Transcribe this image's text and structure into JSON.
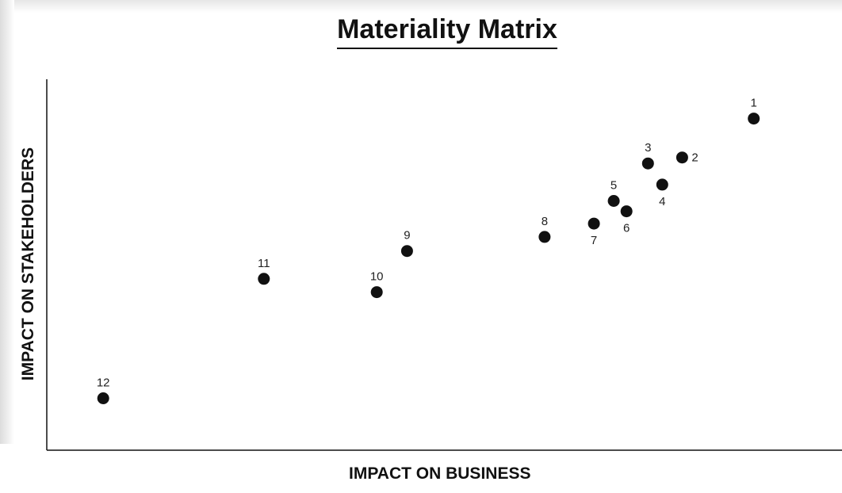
{
  "chart_data": {
    "type": "scatter",
    "title": "Materiality Matrix",
    "xlabel": "IMPACT ON BUSINESS",
    "ylabel": "IMPACT ON STAKEHOLDERS",
    "xlim": [
      0,
      100
    ],
    "ylim": [
      0,
      100
    ],
    "grid": false,
    "legend": "none",
    "marker_color": "#111111",
    "points": [
      {
        "label": "1",
        "x": 88.9,
        "y": 89.4,
        "label_pos": "above"
      },
      {
        "label": "2",
        "x": 79.9,
        "y": 78.9,
        "label_pos": "right"
      },
      {
        "label": "3",
        "x": 75.6,
        "y": 77.3,
        "label_pos": "above"
      },
      {
        "label": "4",
        "x": 77.4,
        "y": 71.6,
        "label_pos": "below"
      },
      {
        "label": "5",
        "x": 71.3,
        "y": 67.2,
        "label_pos": "above"
      },
      {
        "label": "6",
        "x": 72.9,
        "y": 64.4,
        "label_pos": "below"
      },
      {
        "label": "7",
        "x": 68.8,
        "y": 61.1,
        "label_pos": "below"
      },
      {
        "label": "8",
        "x": 62.6,
        "y": 57.5,
        "label_pos": "above"
      },
      {
        "label": "9",
        "x": 45.3,
        "y": 53.7,
        "label_pos": "above"
      },
      {
        "label": "10",
        "x": 41.5,
        "y": 42.6,
        "label_pos": "above"
      },
      {
        "label": "11",
        "x": 27.3,
        "y": 46.2,
        "label_pos": "above"
      },
      {
        "label": "12",
        "x": 7.1,
        "y": 14.0,
        "label_pos": "above"
      }
    ]
  }
}
